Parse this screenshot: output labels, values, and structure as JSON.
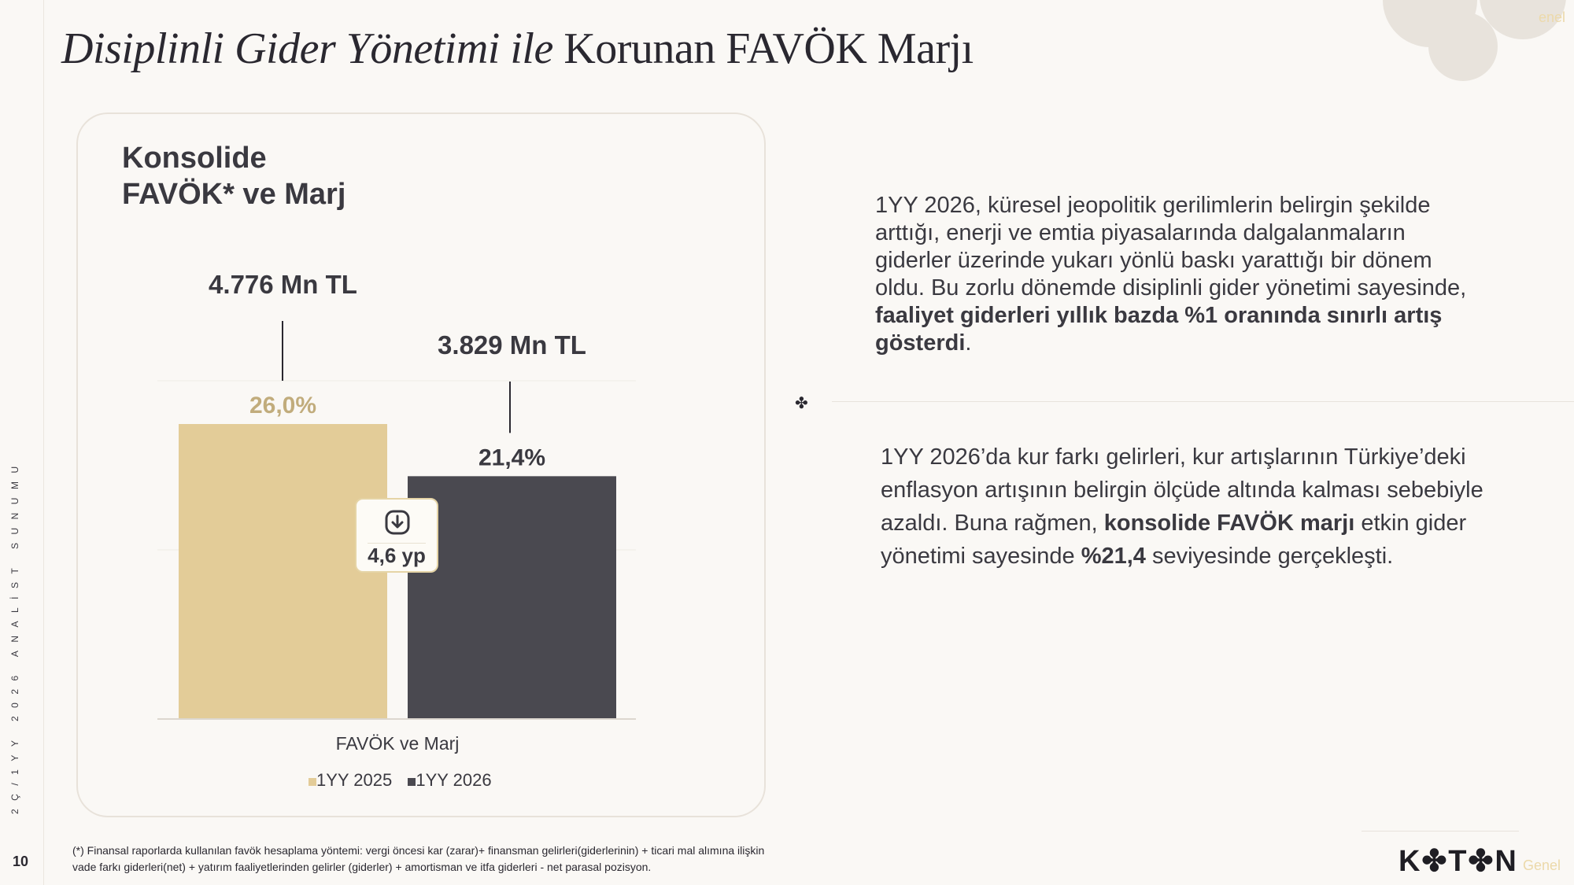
{
  "title": {
    "italic": "Disiplinli Gider Yönetimi ile",
    "regular": "Korunan FAVÖK Marjı"
  },
  "sidebar": {
    "vertical_text": "2Ç/1YY 2026 ANALİST SUNUMU",
    "page_number": "10"
  },
  "watermark": {
    "top": "enel",
    "bottom": "Genel"
  },
  "card": {
    "title_line1": "Konsolide",
    "title_line2": "FAVÖK* ve Marj"
  },
  "chart_data": {
    "type": "bar",
    "categories": [
      "FAVÖK ve Marj"
    ],
    "series": [
      {
        "name": "1YY 2025",
        "value_label": "4.776 Mn TL",
        "value": 4776,
        "margin_label": "26,0%",
        "margin": 26.0,
        "color": "#e3cc98",
        "label_color": "#c1ac7c"
      },
      {
        "name": "1YY 2026",
        "value_label": "3.829 Mn TL",
        "value": 3829,
        "margin_label": "21,4%",
        "margin": 21.4,
        "color": "#4a4950",
        "label_color": "#3a3940"
      }
    ],
    "change_badge": "4,6 yp",
    "xlabel": "FAVÖK ve Marj",
    "legend_position": "bottom"
  },
  "right": {
    "para1_plain": "1YY 2026, küresel jeopolitik gerilimlerin belirgin şekilde arttığı, enerji ve emtia piyasalarında dalgalanmaların giderler üzerinde yukarı yönlü baskı yarattığı bir dönem oldu. Bu zorlu dönemde disiplinli gider yönetimi sayesinde, ",
    "para1_bold": "faaliyet giderleri yıllık bazda %1 oranında sınırlı artış gösterdi",
    "para1_end": ".",
    "para2_plain1": "1YY 2026’da kur farkı gelirleri, kur artışlarının Türkiye’deki enflasyon artışının belirgin ölçüde altında kalması sebebiyle azaldı. Buna rağmen, ",
    "para2_bold1": "konsolide FAVÖK marjı",
    "para2_plain2": " etkin gider yönetimi sayesinde ",
    "para2_bold2": "%21,4",
    "para2_plain3": " seviyesinde gerçekleşti."
  },
  "footer": {
    "line1": "(*) Finansal raporlarda kullanılan favök hesaplama yöntemi: vergi öncesi kar (zarar)+ finansman gelirleri(giderlerinin) + ticari mal alımına ilişkin",
    "line2": "vade farkı giderleri(net) + yatırım faaliyetlerinden gelirler (giderler) + amortisman ve itfa giderleri - net parasal pozisyon."
  },
  "logo": {
    "text": "K✤T✤N"
  }
}
